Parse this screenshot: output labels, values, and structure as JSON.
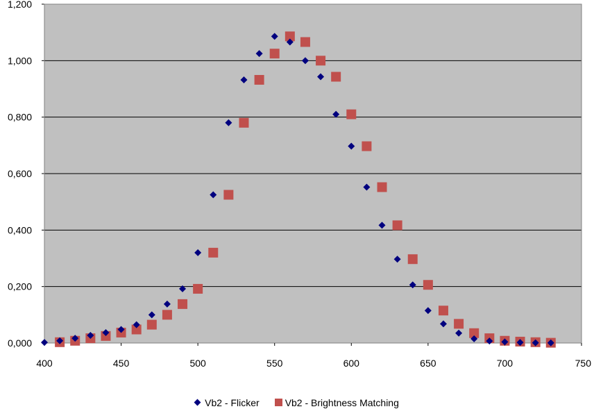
{
  "chart_data": {
    "type": "scatter",
    "title": "",
    "xlabel": "",
    "ylabel": "",
    "xlim": [
      400,
      750
    ],
    "ylim": [
      0,
      1.2
    ],
    "x_ticks": [
      "400",
      "450",
      "500",
      "550",
      "600",
      "650",
      "700",
      "750"
    ],
    "y_ticks": [
      "0,000",
      "0,200",
      "0,400",
      "0,600",
      "0,800",
      "1,000",
      "1,200"
    ],
    "grid": "horizontal",
    "legend_position": "bottom",
    "colors": {
      "plot_bg": "#c0c0c0",
      "flicker": "#00007f",
      "brightness": "#c0504d"
    },
    "series": [
      {
        "name": "Vb2 - Flicker",
        "marker": "diamond",
        "x": [
          400,
          410,
          420,
          430,
          440,
          450,
          460,
          470,
          480,
          490,
          500,
          510,
          520,
          530,
          540,
          550,
          560,
          570,
          580,
          590,
          600,
          610,
          620,
          630,
          640,
          650,
          660,
          670,
          680,
          690,
          700,
          710,
          720,
          730
        ],
        "y": [
          0.002,
          0.008,
          0.017,
          0.027,
          0.037,
          0.048,
          0.065,
          0.1,
          0.138,
          0.192,
          0.32,
          0.525,
          0.78,
          0.932,
          1.025,
          1.086,
          1.066,
          1.0,
          0.943,
          0.81,
          0.697,
          0.552,
          0.417,
          0.297,
          0.206,
          0.115,
          0.068,
          0.035,
          0.015,
          0.007,
          0.004,
          0.002,
          0.001,
          0.0005
        ]
      },
      {
        "name": "Vb2 - Brightness Matching",
        "marker": "square",
        "x": [
          410,
          420,
          430,
          440,
          450,
          460,
          470,
          480,
          490,
          500,
          510,
          520,
          530,
          540,
          550,
          560,
          570,
          580,
          590,
          600,
          610,
          620,
          630,
          640,
          650,
          660,
          670,
          680,
          690,
          700,
          710,
          720,
          730
        ],
        "y": [
          0.003,
          0.008,
          0.017,
          0.025,
          0.037,
          0.048,
          0.065,
          0.1,
          0.138,
          0.192,
          0.32,
          0.525,
          0.78,
          0.932,
          1.025,
          1.086,
          1.066,
          1.0,
          0.943,
          0.81,
          0.697,
          0.552,
          0.417,
          0.297,
          0.206,
          0.115,
          0.068,
          0.035,
          0.017,
          0.008,
          0.005,
          0.003,
          0.001
        ]
      }
    ]
  }
}
